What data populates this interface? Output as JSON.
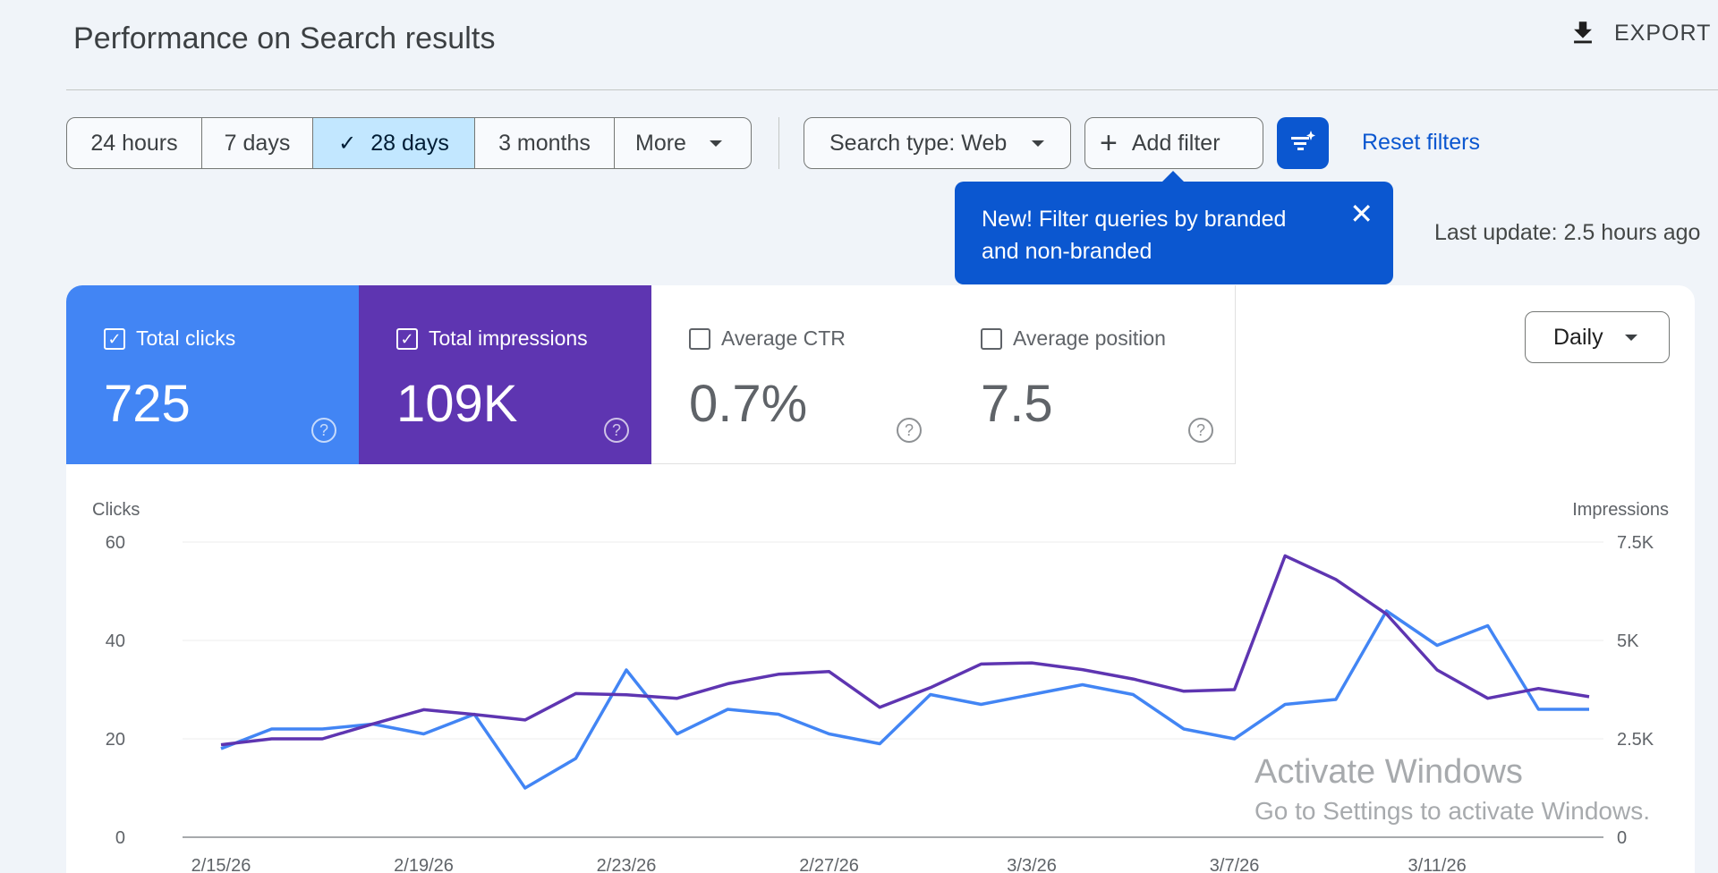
{
  "header": {
    "title": "Performance on Search results",
    "export_label": "EXPORT",
    "export_icon": "download-icon"
  },
  "date_range": {
    "options": [
      {
        "label": "24 hours",
        "selected": false
      },
      {
        "label": "7 days",
        "selected": false
      },
      {
        "label": "28 days",
        "selected": true
      },
      {
        "label": "3 months",
        "selected": false
      },
      {
        "label": "More",
        "selected": false
      }
    ]
  },
  "filters": {
    "search_type_label": "Search type: Web",
    "add_filter_label": "Add filter",
    "reset_label": "Reset filters",
    "filter_icon": "filter-sparkle-icon"
  },
  "tooltip": {
    "text": "New! Filter queries by branded and non-branded",
    "close_icon": "close-icon"
  },
  "last_update": "Last update: 2.5 hours ago",
  "metrics": [
    {
      "label": "Total clicks",
      "value": "725",
      "checked": true,
      "color": "#4285f4"
    },
    {
      "label": "Total impressions",
      "value": "109K",
      "checked": true,
      "color": "#5e35b1"
    },
    {
      "label": "Average CTR",
      "value": "0.7%",
      "checked": false
    },
    {
      "label": "Average position",
      "value": "7.5",
      "checked": false
    }
  ],
  "granularity": "Daily",
  "watermark": {
    "line1": "Activate Windows",
    "line2": "Go to Settings to activate Windows."
  },
  "chart_data": {
    "type": "line",
    "x": [
      "2/15/26",
      "2/16/26",
      "2/17/26",
      "2/18/26",
      "2/19/26",
      "2/20/26",
      "2/21/26",
      "2/22/26",
      "2/23/26",
      "2/24/26",
      "2/25/26",
      "2/26/26",
      "2/27/26",
      "2/28/26",
      "3/1/26",
      "3/2/26",
      "3/3/26",
      "3/4/26",
      "3/5/26",
      "3/6/26",
      "3/7/26",
      "3/8/26",
      "3/9/26",
      "3/10/26",
      "3/11/26",
      "3/12/26",
      "3/13/26",
      "3/14/26"
    ],
    "x_tick_labels": [
      "2/15/26",
      "2/19/26",
      "2/23/26",
      "2/27/26",
      "3/3/26",
      "3/7/26",
      "3/11/26"
    ],
    "ylabel_left": "Clicks",
    "ylabel_right": "Impressions",
    "ylim_left": [
      0,
      60
    ],
    "ylim_right": [
      0,
      7500
    ],
    "yticks_left": [
      "0",
      "20",
      "40",
      "60"
    ],
    "yticks_right": [
      "0",
      "2.5K",
      "5K",
      "7.5K"
    ],
    "grid": true,
    "series": [
      {
        "name": "Clicks",
        "axis": "left",
        "color": "#4285f4",
        "values": [
          18,
          22,
          22,
          23,
          21,
          25,
          10,
          16,
          34,
          21,
          26,
          25,
          21,
          19,
          29,
          27,
          29,
          31,
          29,
          22,
          20,
          27,
          28,
          46,
          39,
          43,
          26,
          26
        ]
      },
      {
        "name": "Impressions",
        "axis": "right",
        "color": "#5e35b1",
        "values": [
          2350,
          2500,
          2500,
          2880,
          3240,
          3120,
          2980,
          3650,
          3620,
          3530,
          3900,
          4140,
          4210,
          3300,
          3800,
          4400,
          4430,
          4260,
          4020,
          3710,
          3750,
          7150,
          6550,
          5670,
          4250,
          3530,
          3780,
          3570
        ]
      }
    ]
  }
}
